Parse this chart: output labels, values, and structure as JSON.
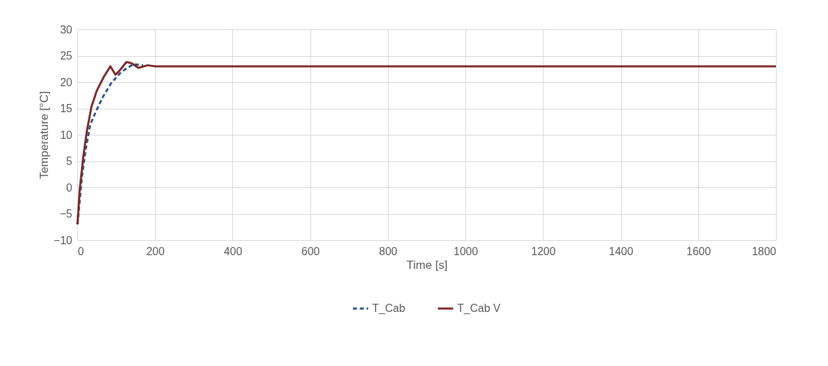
{
  "chart_data": {
    "type": "line",
    "xlabel": "Time [s]",
    "ylabel": "Temperature [°C]",
    "xlim": [
      0,
      1800
    ],
    "xticks": [
      0,
      200,
      400,
      600,
      800,
      1000,
      1200,
      1400,
      1600,
      1800
    ],
    "ylim": [
      -10,
      30
    ],
    "yticks": [
      -10,
      -5,
      0,
      5,
      10,
      15,
      20,
      25,
      30
    ],
    "grid": true,
    "legend": "bottom",
    "marker": "none",
    "series": [
      {
        "name": "T_Cab",
        "color": "#2e5483",
        "line_style": "dashed",
        "x": [
          0,
          12,
          21,
          33,
          48,
          65,
          86,
          110,
          128,
          145,
          169
        ],
        "values": [
          -7,
          2.3,
          7.1,
          11.9,
          14.5,
          17.1,
          19.7,
          21.7,
          22.7,
          23.4,
          23.2
        ]
      },
      {
        "name": "T_Cab V",
        "color": "#7b2727",
        "line_style": "solid",
        "x": [
          0,
          6,
          15,
          24,
          36,
          50,
          68,
          85,
          98,
          110,
          126,
          139,
          157,
          181,
          200,
          400,
          600,
          800,
          1000,
          1200,
          1400,
          1600,
          1800
        ],
        "values": [
          -7,
          -0.3,
          5.8,
          10.6,
          15.3,
          18.4,
          21,
          23,
          21.4,
          22.3,
          23.8,
          23.6,
          22.7,
          23.2,
          23,
          23,
          23,
          23,
          23,
          23,
          23,
          23,
          23
        ]
      }
    ]
  }
}
